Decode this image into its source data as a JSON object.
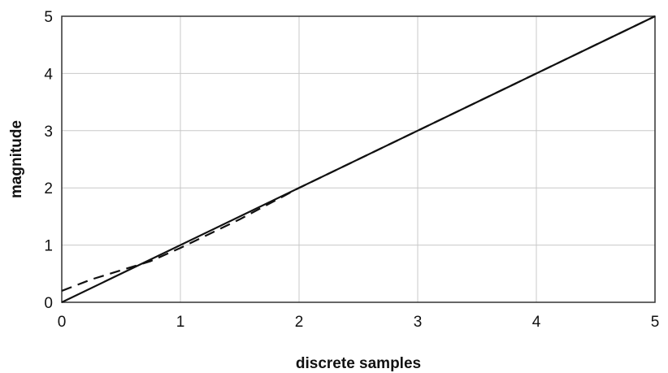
{
  "chart_data": {
    "type": "line",
    "title": "",
    "xlabel": "discrete samples",
    "ylabel": "magnitude",
    "xlim": [
      0,
      5
    ],
    "ylim": [
      0,
      5
    ],
    "xticks": [
      0,
      1,
      2,
      3,
      4,
      5
    ],
    "yticks": [
      0,
      1,
      2,
      3,
      4,
      5
    ],
    "grid": true,
    "legend": "none",
    "series": [
      {
        "style": "solid",
        "color": "#111111",
        "x": [
          0,
          5
        ],
        "y": [
          0,
          5
        ]
      },
      {
        "style": "dashed",
        "color": "#111111",
        "x": [
          0,
          0.25,
          0.5,
          0.75,
          1.0,
          1.25,
          1.5,
          2.0,
          5.0
        ],
        "y": [
          0.2,
          0.4,
          0.56,
          0.72,
          0.95,
          1.2,
          1.45,
          2.0,
          5.0
        ]
      }
    ]
  }
}
